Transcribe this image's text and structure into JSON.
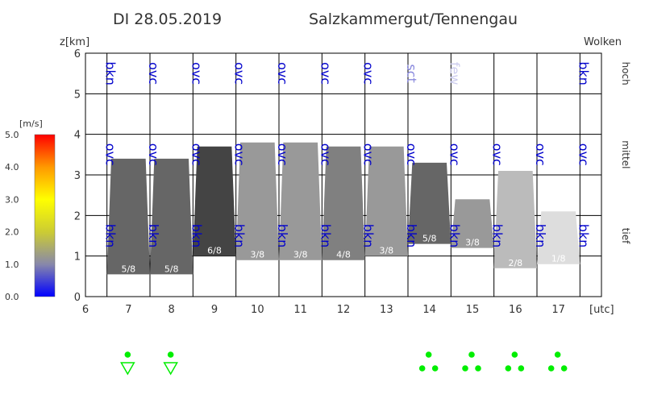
{
  "header": {
    "date": "DI 28.05.2019",
    "region": "Salzkammergut/Tennengau"
  },
  "legend": {
    "unit": "[m/s]",
    "ticks": [
      "0.0",
      "1.0",
      "2.0",
      "3.0",
      "4.0",
      "5.0"
    ],
    "colors": [
      "#0000ff",
      "#8888aa",
      "#cccc33",
      "#ffff00",
      "#ff9900",
      "#ff0000"
    ]
  },
  "chart_data": {
    "type": "bar",
    "ylabel": "z[km]",
    "xunit": "[utc]",
    "ylim": [
      0,
      6
    ],
    "xlim": [
      6,
      18
    ],
    "yticks": [
      "0",
      "1",
      "2",
      "3",
      "4",
      "5",
      "6"
    ],
    "xticks": [
      "6",
      "7",
      "8",
      "9",
      "10",
      "11",
      "12",
      "13",
      "14",
      "15",
      "16",
      "17"
    ],
    "level_title": "Wolken",
    "levels": [
      "hoch",
      "mittel",
      "tief"
    ],
    "grid": true,
    "cloud_bars": [
      {
        "hour": 7,
        "base_km": 0.55,
        "top_km": 3.4,
        "octas": "5/8",
        "color": "#666666"
      },
      {
        "hour": 8,
        "base_km": 0.55,
        "top_km": 3.4,
        "octas": "5/8",
        "color": "#666666"
      },
      {
        "hour": 9,
        "base_km": 1.0,
        "top_km": 3.7,
        "octas": "6/8",
        "color": "#444444"
      },
      {
        "hour": 10,
        "base_km": 0.9,
        "top_km": 3.8,
        "octas": "3/8",
        "color": "#999999"
      },
      {
        "hour": 11,
        "base_km": 0.9,
        "top_km": 3.8,
        "octas": "3/8",
        "color": "#999999"
      },
      {
        "hour": 12,
        "base_km": 0.9,
        "top_km": 3.7,
        "octas": "4/8",
        "color": "#808080"
      },
      {
        "hour": 13,
        "base_km": 1.0,
        "top_km": 3.7,
        "octas": "3/8",
        "color": "#999999"
      },
      {
        "hour": 14,
        "base_km": 1.3,
        "top_km": 3.3,
        "octas": "5/8",
        "color": "#666666"
      },
      {
        "hour": 15,
        "base_km": 1.2,
        "top_km": 2.4,
        "octas": "3/8",
        "color": "#999999"
      },
      {
        "hour": 16,
        "base_km": 0.7,
        "top_km": 3.1,
        "octas": "2/8",
        "color": "#bbbbbb"
      },
      {
        "hour": 17,
        "base_km": 0.8,
        "top_km": 2.1,
        "octas": "1/8",
        "color": "#dddddd"
      }
    ],
    "cloud_labels": {
      "hoch": [
        "bkn",
        "ovc",
        "ovc",
        "ovc",
        "ovc",
        "ovc",
        "ovc",
        "sct",
        "few",
        "",
        "",
        "bkn"
      ],
      "mittel": [
        "ovc",
        "ovc",
        "ovc",
        "ovc",
        "ovc",
        "ovc",
        "ovc",
        "ovc",
        "ovc",
        "ovc",
        "ovc",
        "ovc"
      ],
      "tief": [
        "bkn",
        "bkn",
        "bkn",
        "bkn",
        "bkn",
        "bkn",
        "bkn",
        "bkn",
        "bkn",
        "bkn",
        "bkn",
        "bkn"
      ]
    },
    "cloud_label_colors": {
      "bkn": "#0000cc",
      "ovc": "#0000cc",
      "sct": "#8888dd",
      "few": "#ccccee"
    },
    "precipitation": [
      {
        "hour": 7,
        "symbol": "shower"
      },
      {
        "hour": 8,
        "symbol": "shower"
      },
      {
        "hour": 14,
        "symbol": "rain"
      },
      {
        "hour": 15,
        "symbol": "rain"
      },
      {
        "hour": 16,
        "symbol": "rain"
      },
      {
        "hour": 17,
        "symbol": "rain"
      }
    ],
    "precip_color": "#00ee00"
  }
}
